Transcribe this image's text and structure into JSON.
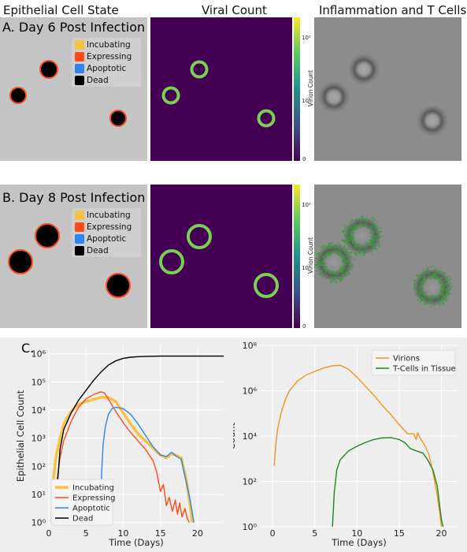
{
  "column_titles": [
    "Epithelial Cell State",
    "Viral Count",
    "Inflammation and T Cells"
  ],
  "rows": [
    {
      "label": "A. Day 6 Post Infection"
    },
    {
      "label": "B. Day 8 Post Infection"
    }
  ],
  "panel_c_label": "C.",
  "state_legend": [
    {
      "label": "Incubating",
      "color": "#f5c242"
    },
    {
      "label": "Expressing",
      "color": "#ff4a1c"
    },
    {
      "label": "Apoptotic",
      "color": "#2e86f0"
    },
    {
      "label": "Dead",
      "color": "#000000"
    }
  ],
  "colorbar": {
    "label": "Virion Count",
    "ticks": [
      "10²",
      "10¹",
      "0"
    ]
  },
  "chart_data": [
    {
      "type": "line",
      "xlabel": "Time (Days)",
      "ylabel": "Epithelial Cell Count",
      "xlim": [
        0,
        23.5
      ],
      "ylim_log10": [
        -0.15,
        6.3
      ],
      "scale": "log",
      "x_ticks": [
        "0",
        "5",
        "10",
        "15",
        "20"
      ],
      "y_ticks": [
        "10⁰",
        "10¹",
        "10²",
        "10³",
        "10⁴",
        "10⁵",
        "10⁶"
      ],
      "legend": "bottom-left",
      "series": [
        {
          "name": "Incubating",
          "color": "#f5c242",
          "points": [
            [
              0.4,
              0
            ],
            [
              0.6,
              1.5
            ],
            [
              1,
              2.4
            ],
            [
              1.5,
              3
            ],
            [
              2,
              3.5
            ],
            [
              3,
              3.95
            ],
            [
              4,
              4.2
            ],
            [
              5,
              4.3
            ],
            [
              6,
              4.38
            ],
            [
              7,
              4.45
            ],
            [
              8,
              4.45
            ],
            [
              9,
              4.3
            ],
            [
              10,
              3.9
            ],
            [
              11,
              3.5
            ],
            [
              12,
              3.15
            ],
            [
              13,
              2.9
            ],
            [
              14,
              2.65
            ],
            [
              15,
              2.4
            ],
            [
              15.8,
              2.3
            ],
            [
              16.5,
              2.45
            ],
            [
              17,
              2.4
            ],
            [
              17.8,
              2.3
            ],
            [
              18.5,
              1.5
            ],
            [
              19,
              0.6
            ],
            [
              19.3,
              0
            ]
          ]
        },
        {
          "name": "Expressing",
          "color": "#ff4a1c",
          "points": [
            [
              0.9,
              0
            ],
            [
              1.1,
              1.5
            ],
            [
              1.5,
              2.3
            ],
            [
              2,
              2.9
            ],
            [
              3,
              3.6
            ],
            [
              4,
              4.1
            ],
            [
              5,
              4.4
            ],
            [
              6,
              4.55
            ],
            [
              7,
              4.65
            ],
            [
              7.5,
              4.6
            ],
            [
              8,
              4.4
            ],
            [
              9,
              3.95
            ],
            [
              10,
              3.55
            ],
            [
              11,
              3.2
            ],
            [
              12,
              2.9
            ],
            [
              13,
              2.6
            ],
            [
              14,
              2.2
            ],
            [
              14.5,
              1.8
            ],
            [
              15,
              1.1
            ],
            [
              15.4,
              1.35
            ],
            [
              15.8,
              0.6
            ],
            [
              16.2,
              0.9
            ],
            [
              16.6,
              0.4
            ],
            [
              17,
              0.8
            ],
            [
              17.3,
              0.3
            ],
            [
              17.6,
              0.7
            ],
            [
              17.9,
              0.2
            ],
            [
              18.3,
              0.5
            ],
            [
              18.6,
              0.15
            ],
            [
              18.9,
              0
            ]
          ]
        },
        {
          "name": "Apoptotic",
          "color": "#2e86f0",
          "points": [
            [
              6.9,
              0
            ],
            [
              7.1,
              1.8
            ],
            [
              7.3,
              2.8
            ],
            [
              7.6,
              3.4
            ],
            [
              8,
              3.85
            ],
            [
              8.5,
              4.05
            ],
            [
              9,
              4.1
            ],
            [
              10,
              4.05
            ],
            [
              11,
              3.85
            ],
            [
              12,
              3.5
            ],
            [
              13,
              3.1
            ],
            [
              14,
              2.7
            ],
            [
              15,
              2.4
            ],
            [
              15.8,
              2.35
            ],
            [
              16.5,
              2.5
            ],
            [
              17.2,
              2.35
            ],
            [
              17.8,
              2.25
            ],
            [
              18.5,
              1.4
            ],
            [
              19,
              0.8
            ],
            [
              19.5,
              0
            ]
          ]
        },
        {
          "name": "Dead",
          "color": "#000000",
          "points": [
            [
              1.1,
              0
            ],
            [
              1.2,
              1.5
            ],
            [
              1.5,
              2.6
            ],
            [
              2,
              3.3
            ],
            [
              3,
              3.9
            ],
            [
              4,
              4.35
            ],
            [
              5,
              4.7
            ],
            [
              6,
              5.05
            ],
            [
              7,
              5.35
            ],
            [
              8,
              5.6
            ],
            [
              9,
              5.75
            ],
            [
              10,
              5.84
            ],
            [
              11,
              5.88
            ],
            [
              12,
              5.9
            ],
            [
              13,
              5.91
            ],
            [
              15,
              5.92
            ],
            [
              18,
              5.92
            ],
            [
              23.5,
              5.92
            ]
          ]
        }
      ]
    },
    {
      "type": "line",
      "xlabel": "Time (Days)",
      "ylabel": "Count",
      "xlim": [
        -1.5,
        22
      ],
      "ylim_log10": [
        0,
        8
      ],
      "scale": "log",
      "x_ticks": [
        "0",
        "5",
        "10",
        "15",
        "20"
      ],
      "y_ticks": [
        "10⁰",
        "10²",
        "10⁴",
        "10⁶",
        "10⁸"
      ],
      "legend": "top-right",
      "series": [
        {
          "name": "Virions",
          "color": "#f7941d",
          "points": [
            [
              0.2,
              2.7
            ],
            [
              0.35,
              3.5
            ],
            [
              0.6,
              4.3
            ],
            [
              1,
              5
            ],
            [
              1.5,
              5.6
            ],
            [
              2,
              6
            ],
            [
              3,
              6.45
            ],
            [
              4,
              6.7
            ],
            [
              5,
              6.85
            ],
            [
              6,
              7.0
            ],
            [
              7,
              7.1
            ],
            [
              8,
              7.12
            ],
            [
              9,
              6.95
            ],
            [
              10,
              6.6
            ],
            [
              11,
              6.2
            ],
            [
              12,
              5.8
            ],
            [
              13,
              5.35
            ],
            [
              14,
              4.95
            ],
            [
              15,
              4.5
            ],
            [
              16,
              4.1
            ],
            [
              16.7,
              4.1
            ],
            [
              17,
              3.85
            ],
            [
              17.2,
              4.15
            ],
            [
              17.5,
              3.9
            ],
            [
              18,
              3.6
            ],
            [
              18.5,
              3.2
            ],
            [
              19,
              2.4
            ],
            [
              19.5,
              1.4
            ],
            [
              19.9,
              0.3
            ],
            [
              20,
              0
            ]
          ]
        },
        {
          "name": "T-Cells in Tissue",
          "color": "#1c8a1c",
          "points": [
            [
              7.1,
              0
            ],
            [
              7.3,
              1.5
            ],
            [
              7.6,
              2.5
            ],
            [
              8,
              2.95
            ],
            [
              9,
              3.35
            ],
            [
              10,
              3.55
            ],
            [
              11,
              3.72
            ],
            [
              12,
              3.85
            ],
            [
              13,
              3.92
            ],
            [
              14,
              3.93
            ],
            [
              15,
              3.85
            ],
            [
              15.7,
              3.7
            ],
            [
              16.3,
              3.45
            ],
            [
              17,
              3.35
            ],
            [
              17.8,
              3.25
            ],
            [
              18.3,
              3.0
            ],
            [
              19,
              2.5
            ],
            [
              19.5,
              1.8
            ],
            [
              20,
              0.3
            ],
            [
              20.2,
              0
            ]
          ]
        }
      ]
    }
  ]
}
